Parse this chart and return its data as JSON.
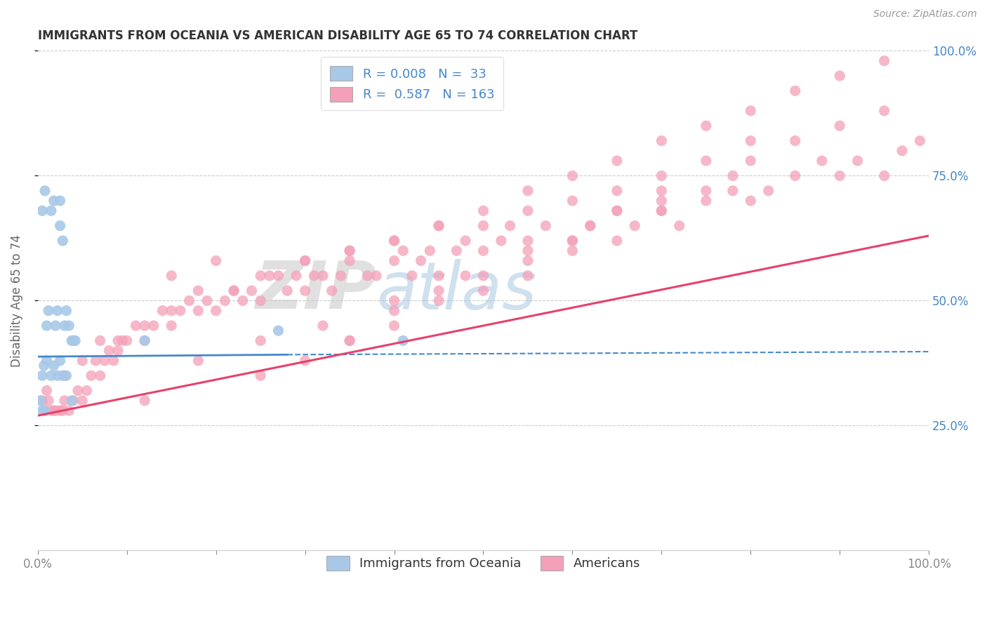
{
  "title": "IMMIGRANTS FROM OCEANIA VS AMERICAN DISABILITY AGE 65 TO 74 CORRELATION CHART",
  "source_text": "Source: ZipAtlas.com",
  "ylabel": "Disability Age 65 to 74",
  "xlim": [
    0.0,
    1.0
  ],
  "ylim": [
    0.0,
    1.0
  ],
  "watermark_zip": "ZIP",
  "watermark_atlas": "atlas",
  "blue_color": "#a8c8e8",
  "pink_color": "#f4a0b8",
  "blue_line_color": "#4488cc",
  "pink_line_color": "#e8406a",
  "title_color": "#333333",
  "axis_label_color": "#666666",
  "grid_color": "#cccccc",
  "blue_scatter_x": [
    0.005,
    0.008,
    0.01,
    0.012,
    0.015,
    0.018,
    0.02,
    0.022,
    0.025,
    0.025,
    0.028,
    0.03,
    0.032,
    0.035,
    0.038,
    0.04,
    0.042,
    0.005,
    0.007,
    0.01,
    0.015,
    0.018,
    0.022,
    0.025,
    0.028,
    0.032,
    0.038,
    0.003,
    0.005,
    0.008,
    0.12,
    0.27,
    0.41
  ],
  "blue_scatter_y": [
    0.68,
    0.72,
    0.45,
    0.48,
    0.68,
    0.7,
    0.45,
    0.48,
    0.65,
    0.7,
    0.62,
    0.45,
    0.48,
    0.45,
    0.42,
    0.42,
    0.42,
    0.35,
    0.37,
    0.38,
    0.35,
    0.37,
    0.35,
    0.38,
    0.35,
    0.35,
    0.3,
    0.3,
    0.28,
    0.28,
    0.42,
    0.44,
    0.42
  ],
  "pink_scatter_x": [
    0.005,
    0.008,
    0.01,
    0.012,
    0.015,
    0.018,
    0.02,
    0.025,
    0.028,
    0.03,
    0.035,
    0.04,
    0.045,
    0.05,
    0.055,
    0.06,
    0.065,
    0.07,
    0.075,
    0.08,
    0.085,
    0.09,
    0.095,
    0.1,
    0.11,
    0.12,
    0.13,
    0.14,
    0.15,
    0.16,
    0.17,
    0.18,
    0.19,
    0.2,
    0.21,
    0.22,
    0.23,
    0.24,
    0.25,
    0.27,
    0.28,
    0.29,
    0.3,
    0.31,
    0.32,
    0.33,
    0.34,
    0.35,
    0.37,
    0.38,
    0.4,
    0.41,
    0.42,
    0.43,
    0.44,
    0.45,
    0.47,
    0.48,
    0.5,
    0.52,
    0.53,
    0.55,
    0.57,
    0.6,
    0.62,
    0.65,
    0.67,
    0.7,
    0.72,
    0.75,
    0.78,
    0.8,
    0.82,
    0.85,
    0.88,
    0.9,
    0.92,
    0.95,
    0.97,
    0.99,
    0.03,
    0.05,
    0.07,
    0.09,
    0.12,
    0.15,
    0.18,
    0.22,
    0.26,
    0.3,
    0.35,
    0.4,
    0.45,
    0.5,
    0.55,
    0.6,
    0.65,
    0.7,
    0.75,
    0.8,
    0.35,
    0.4,
    0.45,
    0.5,
    0.55,
    0.6,
    0.65,
    0.7,
    0.75,
    0.8,
    0.85,
    0.9,
    0.95,
    0.25,
    0.3,
    0.35,
    0.4,
    0.45,
    0.5,
    0.55,
    0.6,
    0.65,
    0.7,
    0.15,
    0.2,
    0.25,
    0.3,
    0.35,
    0.4,
    0.45,
    0.5,
    0.55,
    0.6,
    0.65,
    0.7,
    0.75,
    0.8,
    0.85,
    0.9,
    0.95,
    0.12,
    0.18,
    0.25,
    0.32,
    0.4,
    0.48,
    0.55,
    0.62,
    0.7,
    0.78
  ],
  "pink_scatter_y": [
    0.3,
    0.28,
    0.32,
    0.3,
    0.28,
    0.28,
    0.28,
    0.28,
    0.28,
    0.3,
    0.28,
    0.3,
    0.32,
    0.3,
    0.32,
    0.35,
    0.38,
    0.35,
    0.38,
    0.4,
    0.38,
    0.4,
    0.42,
    0.42,
    0.45,
    0.42,
    0.45,
    0.48,
    0.45,
    0.48,
    0.5,
    0.48,
    0.5,
    0.48,
    0.5,
    0.52,
    0.5,
    0.52,
    0.5,
    0.55,
    0.52,
    0.55,
    0.52,
    0.55,
    0.55,
    0.52,
    0.55,
    0.58,
    0.55,
    0.55,
    0.58,
    0.6,
    0.55,
    0.58,
    0.6,
    0.55,
    0.6,
    0.62,
    0.6,
    0.62,
    0.65,
    0.62,
    0.65,
    0.62,
    0.65,
    0.68,
    0.65,
    0.68,
    0.65,
    0.7,
    0.72,
    0.7,
    0.72,
    0.75,
    0.78,
    0.75,
    0.78,
    0.75,
    0.8,
    0.82,
    0.35,
    0.38,
    0.42,
    0.42,
    0.45,
    0.48,
    0.52,
    0.52,
    0.55,
    0.58,
    0.6,
    0.62,
    0.65,
    0.65,
    0.68,
    0.7,
    0.72,
    0.75,
    0.78,
    0.82,
    0.42,
    0.45,
    0.5,
    0.52,
    0.55,
    0.6,
    0.62,
    0.68,
    0.72,
    0.78,
    0.82,
    0.85,
    0.88,
    0.35,
    0.38,
    0.42,
    0.48,
    0.52,
    0.55,
    0.58,
    0.62,
    0.68,
    0.72,
    0.55,
    0.58,
    0.55,
    0.58,
    0.6,
    0.62,
    0.65,
    0.68,
    0.72,
    0.75,
    0.78,
    0.82,
    0.85,
    0.88,
    0.92,
    0.95,
    0.98,
    0.3,
    0.38,
    0.42,
    0.45,
    0.5,
    0.55,
    0.6,
    0.65,
    0.7,
    0.75
  ],
  "blue_line_solid": {
    "x0": 0.0,
    "x1": 0.28,
    "y0": 0.388,
    "y1": 0.392
  },
  "blue_line_dashed": {
    "x0": 0.28,
    "x1": 1.0,
    "y0": 0.392,
    "y1": 0.398
  },
  "pink_line": {
    "x0": 0.0,
    "x1": 1.0,
    "y0": 0.27,
    "y1": 0.63
  },
  "figsize": [
    14.06,
    8.92
  ],
  "dpi": 100
}
